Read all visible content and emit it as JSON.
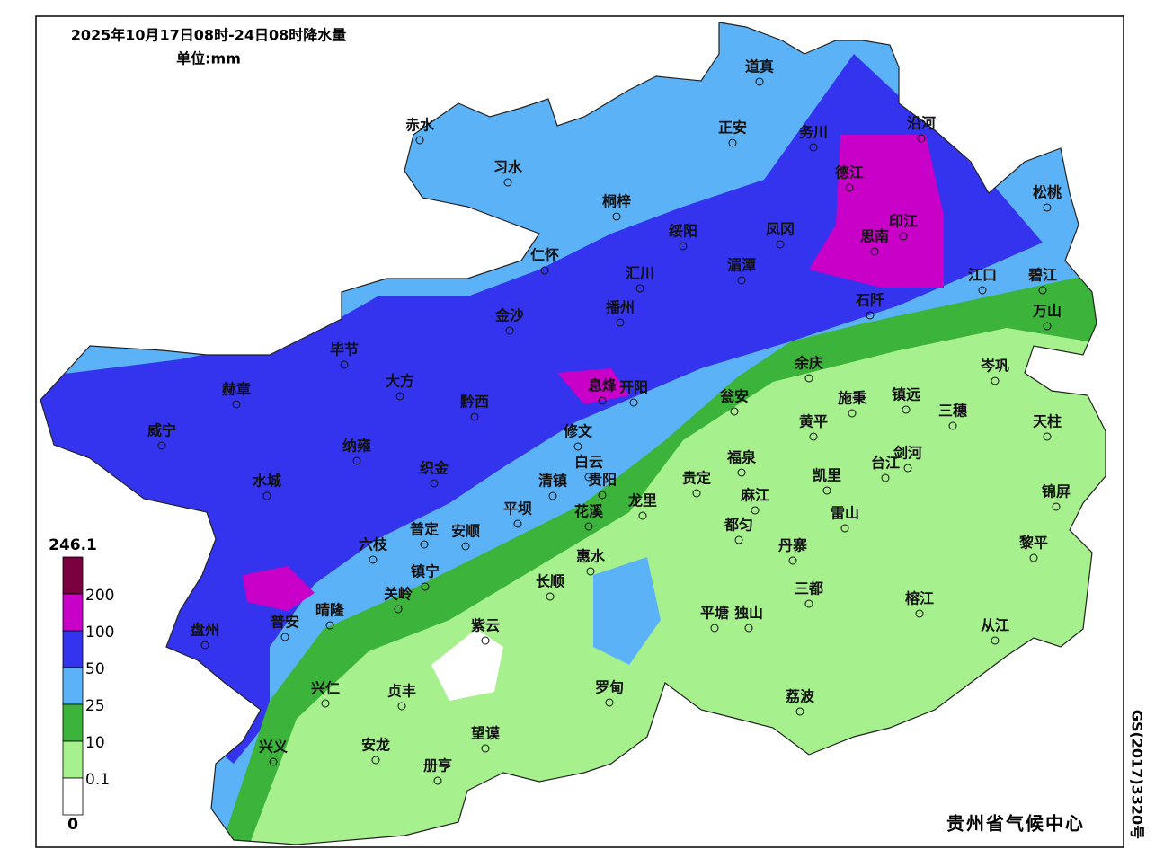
{
  "title": "2025年10月17日08时-24日08时降水量",
  "unit": "单位:mm",
  "legend": {
    "levels": [
      246.1,
      200,
      100,
      50,
      25,
      10,
      0.1,
      0
    ],
    "colors": [
      "#7a0040",
      "#c800c8",
      "#3434ee",
      "#5cb2f6",
      "#3cb43c",
      "#a6f08e",
      "#ffffff"
    ]
  },
  "cities": [
    "道真",
    "赤水",
    "正安",
    "务川",
    "沿河",
    "习水",
    "德江",
    "松桃",
    "桐梓",
    "印江",
    "凤冈",
    "思南",
    "绥阳",
    "仁怀",
    "汇川",
    "湄潭",
    "江口",
    "碧江",
    "石阡",
    "播州",
    "万山",
    "金沙",
    "毕节",
    "余庆",
    "岑巩",
    "大方",
    "息烽",
    "开阳",
    "赫章",
    "瓮安",
    "施秉",
    "镇远",
    "黔西",
    "三穗",
    "黄平",
    "天柱",
    "威宁",
    "修文",
    "剑河",
    "纳雍",
    "台江",
    "白云",
    "福泉",
    "凯里",
    "织金",
    "清镇",
    "贵阳",
    "贵定",
    "水城",
    "锦屏",
    "麻江",
    "龙里",
    "雷山",
    "都匀",
    "平坝",
    "花溪",
    "普定",
    "安顺",
    "黎平",
    "丹寨",
    "六枝",
    "惠水",
    "镇宁",
    "长顺",
    "三都",
    "关岭",
    "榕江",
    "晴隆",
    "普安",
    "平塘",
    "独山",
    "从江",
    "盘州",
    "紫云",
    "兴仁",
    "贞丰",
    "罗甸",
    "荔波",
    "望谟",
    "兴义",
    "安龙",
    "册亨"
  ],
  "credit": "贵州省气候中心",
  "approval": "GS(2017)3320号"
}
